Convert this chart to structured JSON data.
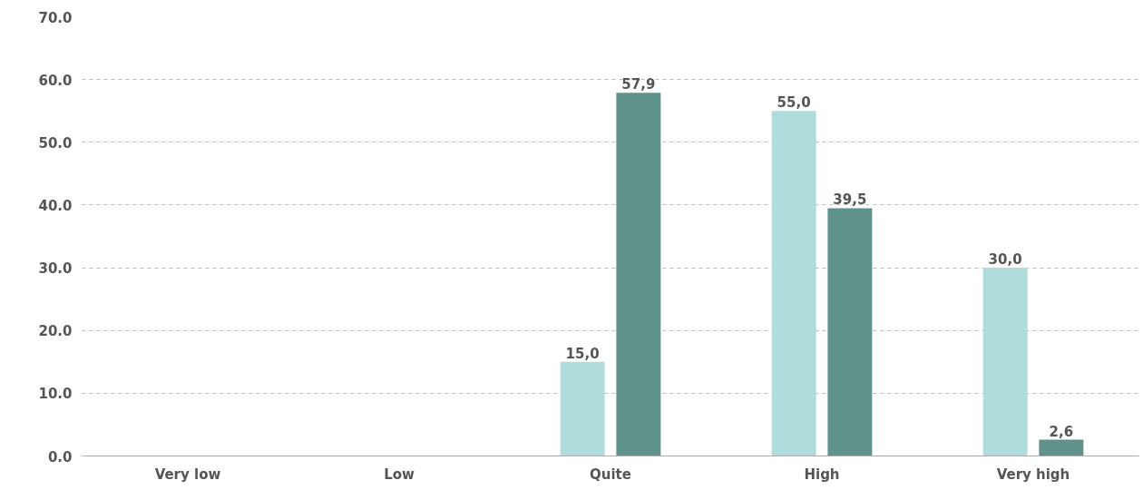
{
  "chart_data": {
    "type": "bar",
    "categories": [
      "Very low",
      "Low",
      "Quite",
      "High",
      "Very high"
    ],
    "series": [
      {
        "color": "#b0dcdb",
        "values": [
          null,
          null,
          15.0,
          55.0,
          30.0
        ],
        "value_labels": [
          null,
          null,
          "15,0",
          "55,0",
          "30,0"
        ]
      },
      {
        "color": "#5f928a",
        "values": [
          null,
          null,
          57.9,
          39.5,
          2.6
        ],
        "value_labels": [
          null,
          null,
          "57,9",
          "39,5",
          "2,6"
        ]
      }
    ],
    "ylim": [
      0,
      70
    ],
    "yticks": [
      {
        "value": 0,
        "label": "0.0"
      },
      {
        "value": 10,
        "label": "10.0"
      },
      {
        "value": 20,
        "label": "20.0"
      },
      {
        "value": 30,
        "label": "30.0"
      },
      {
        "value": 40,
        "label": "40.0"
      },
      {
        "value": 50,
        "label": "50.0"
      },
      {
        "value": 60,
        "label": "60.0"
      },
      {
        "value": 70,
        "label": "70.0"
      }
    ],
    "grid": "y"
  }
}
